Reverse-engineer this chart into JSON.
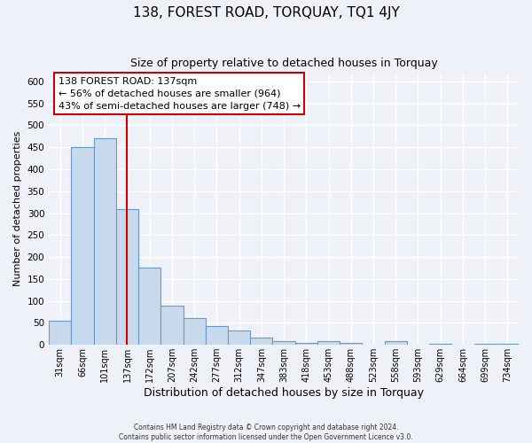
{
  "title": "138, FOREST ROAD, TORQUAY, TQ1 4JY",
  "subtitle": "Size of property relative to detached houses in Torquay",
  "xlabel": "Distribution of detached houses by size in Torquay",
  "ylabel": "Number of detached properties",
  "bar_labels": [
    "31sqm",
    "66sqm",
    "101sqm",
    "137sqm",
    "172sqm",
    "207sqm",
    "242sqm",
    "277sqm",
    "312sqm",
    "347sqm",
    "383sqm",
    "418sqm",
    "453sqm",
    "488sqm",
    "523sqm",
    "558sqm",
    "593sqm",
    "629sqm",
    "664sqm",
    "699sqm",
    "734sqm"
  ],
  "bar_values": [
    55,
    450,
    470,
    310,
    175,
    90,
    60,
    42,
    33,
    17,
    8,
    5,
    8,
    5,
    0,
    8,
    0,
    3,
    0,
    3,
    3
  ],
  "bar_color": "#c9d9ec",
  "bar_edge_color": "#6699cc",
  "vline_x_idx": 3,
  "vline_color": "#cc0000",
  "ylim": [
    0,
    620
  ],
  "yticks": [
    0,
    50,
    100,
    150,
    200,
    250,
    300,
    350,
    400,
    450,
    500,
    550,
    600
  ],
  "annotation_title": "138 FOREST ROAD: 137sqm",
  "annotation_line1": "← 56% of detached houses are smaller (964)",
  "annotation_line2": "43% of semi-detached houses are larger (748) →",
  "footer1": "Contains HM Land Registry data © Crown copyright and database right 2024.",
  "footer2": "Contains public sector information licensed under the Open Government Licence v3.0.",
  "bg_color": "#eef2f8",
  "grid_color": "#ffffff",
  "title_fontsize": 11,
  "subtitle_fontsize": 9,
  "ylabel_fontsize": 8,
  "xlabel_fontsize": 9
}
